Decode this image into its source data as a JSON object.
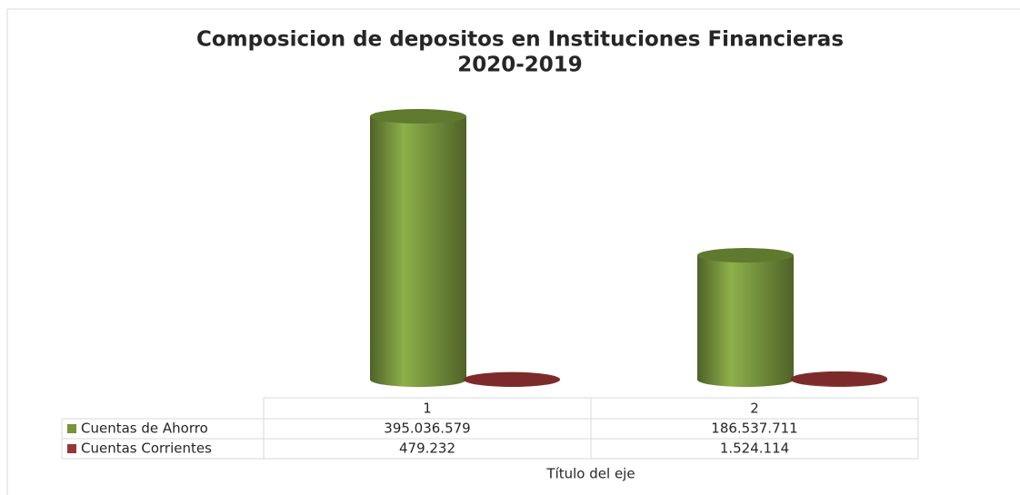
{
  "chart_data": {
    "type": "bar",
    "title": "Composicion de depositos en Instituciones Financieras",
    "subtitle": "2020-2019",
    "x_label": "Título del eje",
    "categories": [
      "1",
      "2"
    ],
    "series": [
      {
        "name": "Cuentas de Ahorro",
        "color": "#77933c",
        "values": [
          395036579,
          186537711
        ],
        "value_labels": [
          "395.036.579",
          "186.537.711"
        ]
      },
      {
        "name": "Cuentas Corrientes",
        "color": "#953735",
        "values": [
          479232,
          1524114
        ],
        "value_labels": [
          "479.232",
          "1.524.114"
        ]
      }
    ]
  }
}
